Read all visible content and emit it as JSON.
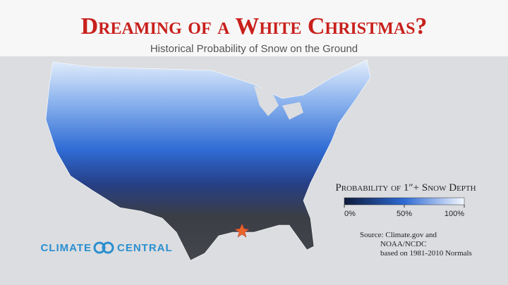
{
  "header": {
    "title": "Dreaming of a White Christmas?",
    "subtitle": "Historical Probability of Snow on the Ground"
  },
  "legend": {
    "title": "Probability of 1″+ Snow Depth",
    "ticks": [
      {
        "value": 0,
        "label": "0%"
      },
      {
        "value": 50,
        "label": "50%"
      },
      {
        "value": 100,
        "label": "100%"
      }
    ]
  },
  "source": [
    "Source: Climate.gov and",
    "NOAA/NCDC",
    "based on 1981-2010 Normals"
  ],
  "logo": {
    "left": "CLIMATE",
    "right": "CENTRAL"
  }
}
